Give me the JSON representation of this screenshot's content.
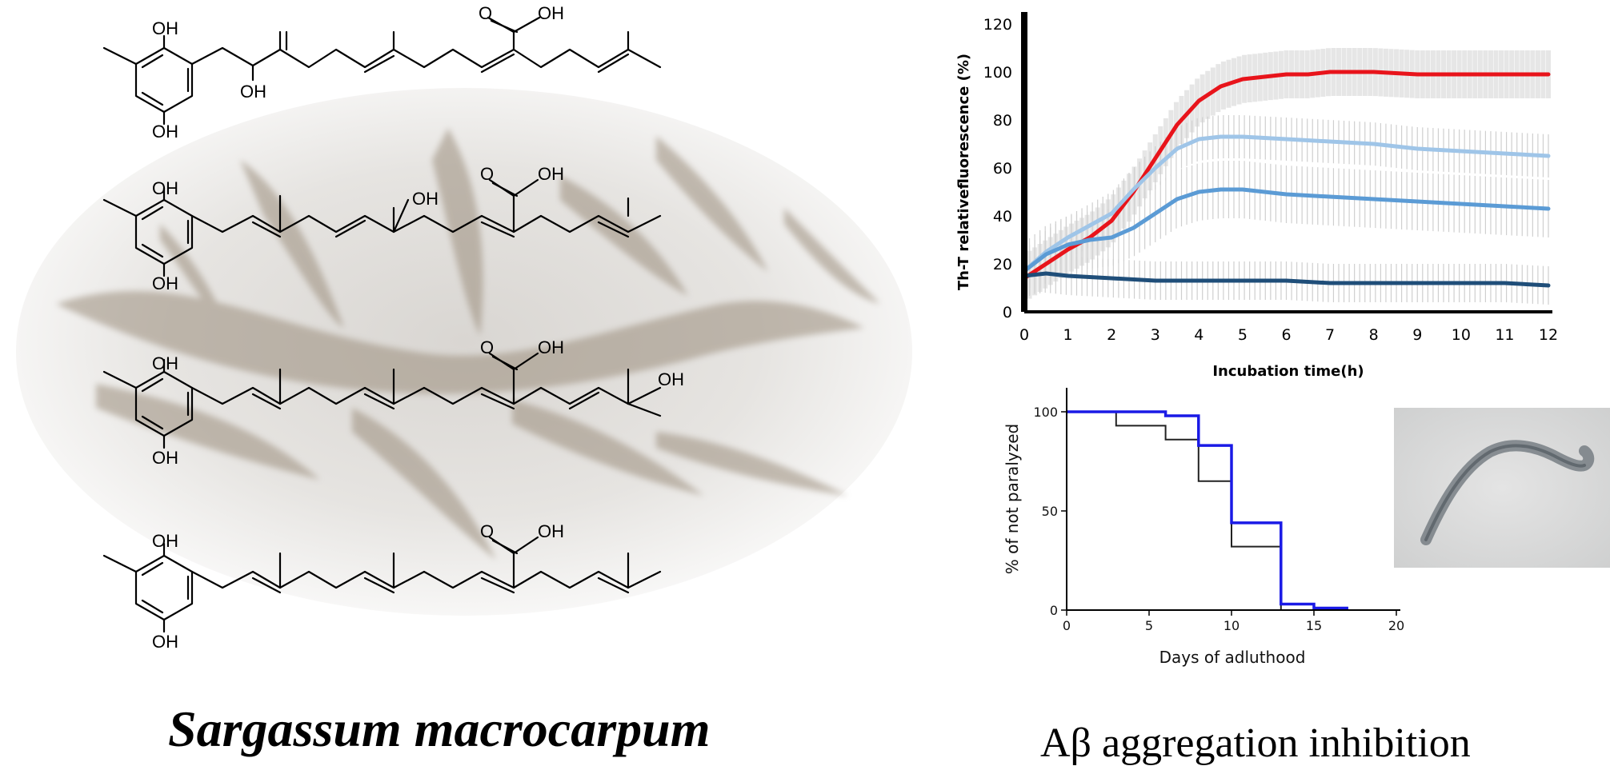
{
  "left_panel": {
    "caption": "Sargassum  macrocarpum",
    "background_image": "seaweed-illustration",
    "molecules": [
      {
        "labels": [
          "OH",
          "OH",
          "OH",
          "O",
          "OH"
        ]
      },
      {
        "labels": [
          "OH",
          "OH",
          "OH",
          "O",
          "OH"
        ]
      },
      {
        "labels": [
          "OH",
          "OH",
          "OH",
          "O",
          "OH"
        ]
      },
      {
        "labels": [
          "OH",
          "OH",
          "O",
          "OH"
        ]
      }
    ]
  },
  "right_caption": "Aβ aggregation inhibition",
  "worm_photo": "c-elegans-worm-photo",
  "chart_data": [
    {
      "type": "line",
      "title": "",
      "xlabel": "Incubation time(h)",
      "ylabel": "Th-T relativefluorescence (%)",
      "xlim": [
        0,
        12
      ],
      "ylim": [
        0,
        120
      ],
      "x_ticks": [
        "0",
        "1",
        "2",
        "3",
        "4",
        "5",
        "6",
        "7",
        "8",
        "9",
        "10",
        "11",
        "12"
      ],
      "y_ticks": [
        "0",
        "20",
        "40",
        "60",
        "80",
        "100",
        "120"
      ],
      "error_bars": true,
      "series": [
        {
          "color": "#e8141b",
          "x": [
            0,
            0.5,
            1,
            1.5,
            2,
            2.5,
            3,
            3.5,
            4,
            4.5,
            5,
            5.5,
            6,
            6.5,
            7,
            8,
            9,
            10,
            11,
            12
          ],
          "y": [
            14,
            20,
            26,
            31,
            38,
            50,
            64,
            78,
            88,
            94,
            97,
            98,
            99,
            99,
            100,
            100,
            99,
            99,
            99,
            99
          ]
        },
        {
          "color": "#9fc5e8",
          "x": [
            0,
            0.5,
            1,
            1.5,
            2,
            2.5,
            3,
            3.5,
            4,
            4.5,
            5,
            6,
            7,
            8,
            9,
            10,
            11,
            12
          ],
          "y": [
            17,
            25,
            31,
            36,
            41,
            51,
            60,
            68,
            72,
            73,
            73,
            72,
            71,
            70,
            68,
            67,
            66,
            65
          ]
        },
        {
          "color": "#5b9bd5",
          "x": [
            0,
            0.5,
            1,
            1.5,
            2,
            2.5,
            3,
            3.5,
            4,
            4.5,
            5,
            6,
            7,
            8,
            9,
            10,
            11,
            12
          ],
          "y": [
            17,
            24,
            28,
            30,
            31,
            35,
            41,
            47,
            50,
            51,
            51,
            49,
            48,
            47,
            46,
            45,
            44,
            43
          ]
        },
        {
          "color": "#1f4e79",
          "x": [
            0,
            0.5,
            1,
            2,
            3,
            4,
            5,
            6,
            7,
            8,
            9,
            10,
            11,
            12
          ],
          "y": [
            15,
            16,
            15,
            14,
            13,
            13,
            13,
            13,
            12,
            12,
            12,
            12,
            12,
            11
          ]
        }
      ]
    },
    {
      "type": "line",
      "title": "",
      "xlabel": "Days of adluthood",
      "ylabel": "% of not paralyzed",
      "xlim": [
        0,
        20
      ],
      "ylim": [
        0,
        100
      ],
      "x_ticks": [
        "0",
        "5",
        "10",
        "15",
        "20"
      ],
      "y_ticks": [
        "0",
        "50",
        "100"
      ],
      "step": true,
      "series": [
        {
          "color": "#222222",
          "x": [
            0,
            3,
            6,
            8,
            10,
            13,
            15
          ],
          "y": [
            100,
            93,
            86,
            65,
            32,
            0,
            0
          ]
        },
        {
          "color": "#1a1ae6",
          "x": [
            0,
            6,
            8,
            10,
            13,
            15,
            17
          ],
          "y": [
            100,
            98,
            83,
            44,
            3,
            1,
            0
          ]
        }
      ]
    }
  ]
}
